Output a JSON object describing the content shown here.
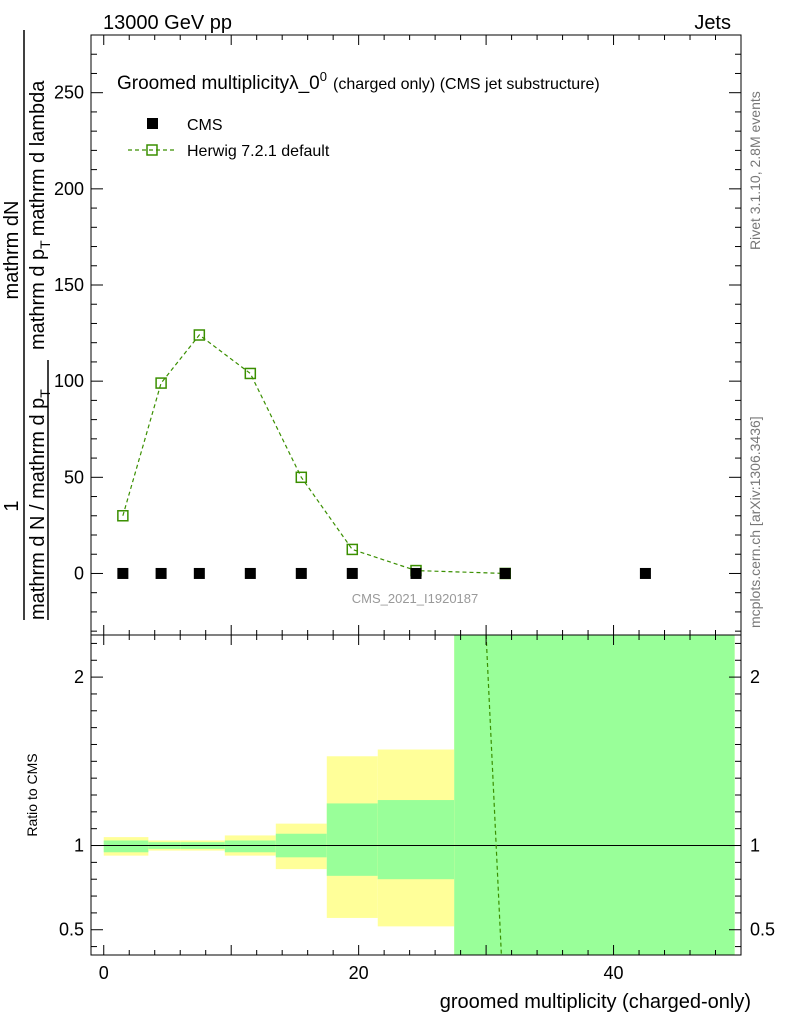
{
  "header": {
    "left": "13000 GeV pp",
    "right": "Jets"
  },
  "side_labels": {
    "rivet": "Rivet 3.1.10,  2.8M events",
    "mcplots": "mcplots.cern.ch [arXiv:1306.3436]"
  },
  "chart_data": [
    {
      "type": "scatter",
      "title_main": "Groomed multiplicity",
      "title_lambda": "λ_0",
      "title_sup": "0",
      "title_tail": "(charged only) (CMS jet substructure)",
      "watermark": "CMS_2021_I1920187",
      "ylabel_numerator": "mathrm dN",
      "ylabel_upper_frac": "mathrm d p",
      "ylabel_upper_rest": "mathrm d lambda",
      "ylabel_sub": "T",
      "ylabel_one": "1",
      "ylabel_lower": "mathrm d N / mathrm d p",
      "ylabel_lower_sub": "T",
      "xlim": [
        -1,
        50
      ],
      "ylim": [
        -32,
        280
      ],
      "yticks": [
        0,
        50,
        100,
        150,
        200,
        250
      ],
      "ytick_labels": [
        "0",
        "50",
        "100",
        "150",
        "200",
        "250"
      ],
      "legend_position": "top-left",
      "series": [
        {
          "name": "CMS",
          "color": "#000000",
          "marker": "filled-square",
          "points": [
            {
              "x": 1.5,
              "y": 0
            },
            {
              "x": 4.5,
              "y": 0
            },
            {
              "x": 7.5,
              "y": 0
            },
            {
              "x": 11.5,
              "y": 0
            },
            {
              "x": 15.5,
              "y": 0
            },
            {
              "x": 19.5,
              "y": 0
            },
            {
              "x": 24.5,
              "y": 0
            },
            {
              "x": 31.5,
              "y": 0
            },
            {
              "x": 42.5,
              "y": 0
            }
          ]
        },
        {
          "name": "Herwig 7.2.1 default",
          "color": "#3a8f00",
          "marker": "open-square",
          "line": "dashed",
          "points": [
            {
              "x": 1.5,
              "y": 30
            },
            {
              "x": 4.5,
              "y": 99
            },
            {
              "x": 7.5,
              "y": 124
            },
            {
              "x": 11.5,
              "y": 104
            },
            {
              "x": 15.5,
              "y": 50
            },
            {
              "x": 19.5,
              "y": 12.5
            },
            {
              "x": 24.5,
              "y": 1.5
            },
            {
              "x": 31.5,
              "y": 0
            }
          ]
        }
      ]
    },
    {
      "type": "area",
      "ylabel": "Ratio to CMS",
      "xlabel": "groomed multiplicity (charged-only)",
      "xlim": [
        -1,
        50
      ],
      "ylim": [
        0.35,
        2.25
      ],
      "xticks": [
        0,
        20,
        40
      ],
      "xtick_labels": [
        "0",
        "20",
        "40"
      ],
      "yticks": [
        0.5,
        1,
        2
      ],
      "ytick_labels": [
        "0.5",
        "1",
        "2"
      ],
      "reference_line": 1,
      "bands": [
        {
          "x0": 0,
          "x1": 3.5,
          "yellow": [
            0.94,
            1.05
          ],
          "green": [
            0.96,
            1.03
          ]
        },
        {
          "x0": 3.5,
          "x1": 6,
          "yellow": [
            0.97,
            1.03
          ],
          "green": [
            0.98,
            1.02
          ]
        },
        {
          "x0": 6,
          "x1": 9.5,
          "yellow": [
            0.97,
            1.03
          ],
          "green": [
            0.98,
            1.02
          ]
        },
        {
          "x0": 9.5,
          "x1": 13.5,
          "yellow": [
            0.94,
            1.06
          ],
          "green": [
            0.96,
            1.03
          ]
        },
        {
          "x0": 13.5,
          "x1": 17.5,
          "yellow": [
            0.86,
            1.13
          ],
          "green": [
            0.93,
            1.07
          ]
        },
        {
          "x0": 17.5,
          "x1": 21.5,
          "yellow": [
            0.57,
            1.53
          ],
          "green": [
            0.82,
            1.25
          ]
        },
        {
          "x0": 21.5,
          "x1": 27.5,
          "yellow": [
            0.52,
            1.57
          ],
          "green": [
            0.8,
            1.27
          ]
        },
        {
          "x0": 27.5,
          "x1": 49.5,
          "yellow": [
            0.35,
            2.25
          ],
          "green": [
            0.35,
            2.25
          ]
        }
      ],
      "series": [
        {
          "name": "Herwig 7.2.1 default",
          "color": "#3a8f00",
          "line": "dashed",
          "points": [
            {
              "x": 30.0,
              "y": 2.25
            },
            {
              "x": 31.2,
              "y": 0.35
            }
          ]
        }
      ],
      "colors": {
        "yellow": "#ffff99",
        "green": "#99ff99"
      }
    }
  ]
}
